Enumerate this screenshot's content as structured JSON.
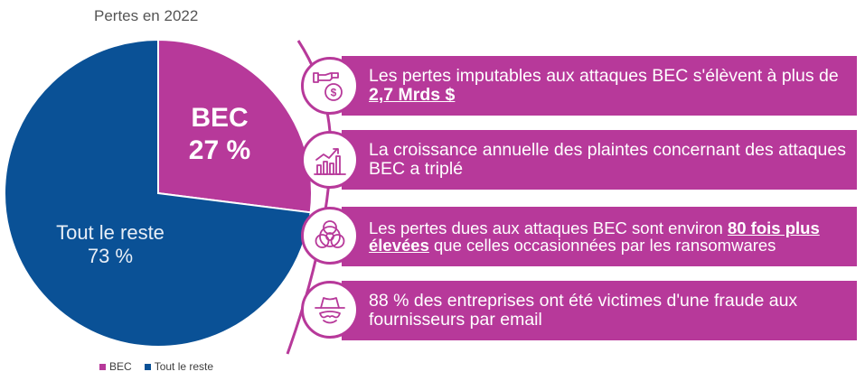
{
  "colors": {
    "accent": "#b7399a",
    "series_bec": "#b7399a",
    "series_rest": "#0a5196"
  },
  "chart_data": {
    "type": "pie",
    "title": "Pertes en 2022",
    "slices": [
      {
        "name": "BEC",
        "value": 27,
        "label": "BEC",
        "pct_label": "27 %",
        "color": "#b7399a"
      },
      {
        "name": "Tout le reste",
        "value": 73,
        "label": "Tout le reste",
        "pct_label": "73 %",
        "color": "#0a5196"
      }
    ],
    "legend": {
      "placement": "bottom",
      "items": [
        "BEC",
        "Tout le reste"
      ]
    }
  },
  "facts": [
    {
      "icon": "money-hand-icon",
      "pre": "Les pertes imputables aux attaques BEC s'élèvent à plus de ",
      "highlight": "2,7 Mrds $",
      "post": ""
    },
    {
      "icon": "growth-chart-icon",
      "pre": "La croissance annuelle des plaintes concernant des attaques BEC a triplé",
      "highlight": "",
      "post": ""
    },
    {
      "icon": "biohazard-icon",
      "pre": "Les pertes dues aux attaques BEC sont environ ",
      "highlight": "80 fois plus élevées",
      "post": " que celles occasionnées par les ransomwares"
    },
    {
      "icon": "spy-hat-icon",
      "pre": "88 % des entreprises ont été victimes d'une fraude aux fournisseurs par email",
      "highlight": "",
      "post": ""
    }
  ]
}
